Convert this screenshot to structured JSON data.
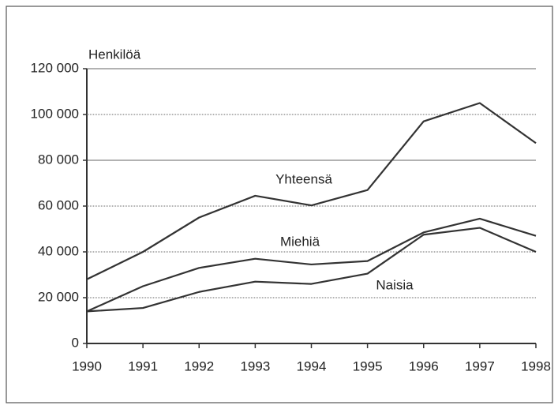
{
  "chart_data": {
    "type": "line",
    "y_label": "Henkilöä",
    "categories": [
      "1990",
      "1991",
      "1992",
      "1993",
      "1994",
      "1995",
      "1996",
      "1997",
      "1998"
    ],
    "series": [
      {
        "name": "Yhteensä",
        "color": "#333333",
        "values": [
          28000,
          40000,
          55000,
          64500,
          60300,
          67000,
          97000,
          105000,
          87500
        ]
      },
      {
        "name": "Miehiä",
        "color": "#333333",
        "values": [
          14000,
          25000,
          33000,
          37000,
          34500,
          36000,
          48500,
          54500,
          47000
        ]
      },
      {
        "name": "Naisia",
        "color": "#333333",
        "values": [
          14000,
          15500,
          22500,
          27000,
          26000,
          30500,
          47500,
          50500,
          40000
        ]
      }
    ],
    "ylim": [
      0,
      120000
    ],
    "yticks": [
      0,
      {
        "value": 20000,
        "label": "20 000"
      },
      {
        "value": 40000,
        "label": "40 000"
      },
      {
        "value": 60000,
        "label": "60 000"
      },
      {
        "value": 80000,
        "label": "80 000"
      },
      {
        "value": 100000,
        "label": "100 000"
      },
      {
        "value": 120000,
        "label": "120 000"
      }
    ],
    "grid": true
  }
}
